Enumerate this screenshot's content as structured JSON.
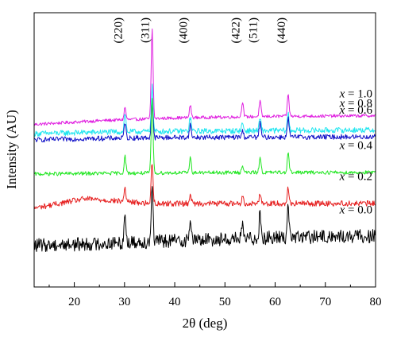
{
  "chart_data": {
    "type": "line",
    "xlabel": "2θ (deg)",
    "ylabel": "Intensity (AU)",
    "xlim": [
      12,
      80
    ],
    "x_ticks": [
      20,
      30,
      40,
      50,
      60,
      70,
      80
    ],
    "y_ticks_shown": false,
    "grid": false,
    "legend": "none",
    "peak_labels": [
      {
        "text": "(220)",
        "x": 30.1
      },
      {
        "text": "(311)",
        "x": 35.5
      },
      {
        "text": "(400)",
        "x": 43.1
      },
      {
        "text": "(422)",
        "x": 53.5
      },
      {
        "text": "(511)",
        "x": 57.0
      },
      {
        "text": "(440)",
        "x": 62.6
      }
    ],
    "series": [
      {
        "label": "x = 1.0",
        "color": "#e020e0",
        "noise": 0.05,
        "baseline": [
          [
            12,
            0.5
          ],
          [
            25,
            0.62
          ],
          [
            40,
            0.71
          ],
          [
            60,
            0.76
          ],
          [
            80,
            0.78
          ]
        ],
        "peaks": [
          [
            30.1,
            0.4
          ],
          [
            35.5,
            2.9
          ],
          [
            43.1,
            0.4
          ],
          [
            53.5,
            0.5
          ],
          [
            57.0,
            0.5
          ],
          [
            62.6,
            0.7
          ]
        ]
      },
      {
        "label": "x = 0.8",
        "color": "#22e6f0",
        "noise": 0.09,
        "baseline": [
          [
            12,
            0.2
          ],
          [
            25,
            0.25
          ],
          [
            40,
            0.28
          ],
          [
            60,
            0.3
          ],
          [
            80,
            0.32
          ]
        ],
        "peaks": [
          [
            30.1,
            0.6
          ],
          [
            35.5,
            1.45
          ],
          [
            43.1,
            0.45
          ],
          [
            53.5,
            0.25
          ],
          [
            57.0,
            0.4
          ],
          [
            62.6,
            0.55
          ]
        ]
      },
      {
        "label": "x = 0.6",
        "color": "#1010c8",
        "noise": 0.08,
        "baseline": [
          [
            12,
            0.0
          ],
          [
            25,
            0.05
          ],
          [
            40,
            0.08
          ],
          [
            60,
            0.09
          ],
          [
            80,
            0.1
          ]
        ],
        "peaks": [
          [
            30.1,
            0.5
          ],
          [
            35.5,
            1.15
          ],
          [
            43.1,
            0.4
          ],
          [
            53.5,
            0.2
          ],
          [
            57.0,
            0.45
          ],
          [
            62.6,
            0.6
          ]
        ]
      },
      {
        "label": "x = 0.4",
        "color": "#22e622",
        "noise": 0.06,
        "baseline": [
          [
            12,
            -1.1
          ],
          [
            25,
            -1.08
          ],
          [
            40,
            -1.06
          ],
          [
            60,
            -1.05
          ],
          [
            80,
            -1.05
          ]
        ],
        "peaks": [
          [
            30.1,
            0.55
          ],
          [
            35.5,
            2.4
          ],
          [
            43.1,
            0.5
          ],
          [
            53.5,
            0.25
          ],
          [
            57.0,
            0.5
          ],
          [
            62.6,
            0.7
          ]
        ]
      },
      {
        "label": "x = 0.2",
        "color": "#e62020",
        "noise": 0.09,
        "baseline": [
          [
            12,
            -2.2
          ],
          [
            17,
            -2.05
          ],
          [
            22,
            -1.9
          ],
          [
            27,
            -1.95
          ],
          [
            35,
            -2.05
          ],
          [
            50,
            -2.05
          ],
          [
            80,
            -2.05
          ]
        ],
        "peaks": [
          [
            30.1,
            0.45
          ],
          [
            35.5,
            1.35
          ],
          [
            43.1,
            0.3
          ],
          [
            53.5,
            0.2
          ],
          [
            57.0,
            0.35
          ],
          [
            62.6,
            0.5
          ]
        ]
      },
      {
        "label": "x = 0.0",
        "color": "#000000",
        "noise": 0.22,
        "baseline": [
          [
            12,
            -3.4
          ],
          [
            25,
            -3.35
          ],
          [
            40,
            -3.25
          ],
          [
            60,
            -3.15
          ],
          [
            80,
            -3.1
          ]
        ],
        "peaks": [
          [
            30.1,
            0.95
          ],
          [
            35.5,
            1.85
          ],
          [
            43.1,
            0.7
          ],
          [
            53.5,
            0.35
          ],
          [
            57.0,
            0.85
          ],
          [
            62.6,
            1.05
          ]
        ]
      }
    ]
  }
}
